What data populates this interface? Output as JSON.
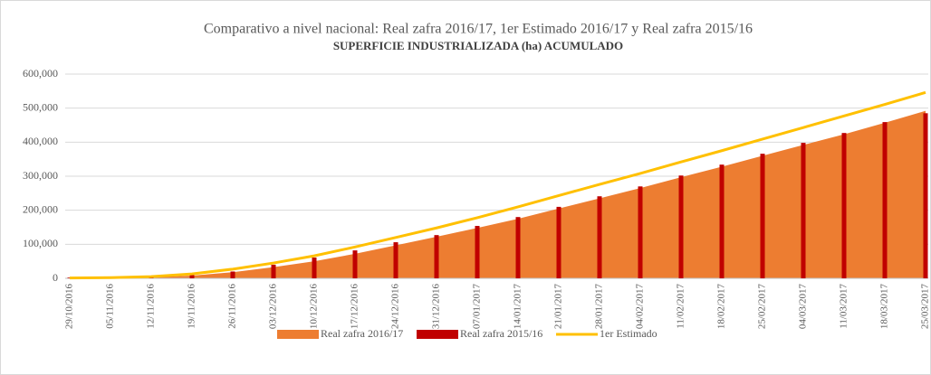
{
  "chart_data": {
    "type": "combo",
    "title": "Comparativo a nivel nacional: Real zafra 2016/17, 1er Estimado 2016/17 y Real zafra 2015/16",
    "subtitle": "SUPERFICIE INDUSTRIALIZADA (ha) ACUMULADO",
    "categories": [
      "29/10/2016",
      "05/11/2016",
      "12/11/2016",
      "19/11/2016",
      "26/11/2016",
      "03/12/2016",
      "10/12/2016",
      "17/12/2016",
      "24/12/2016",
      "31/12/2016",
      "07/01/2017",
      "14/01/2017",
      "21/01/2017",
      "28/01/2017",
      "04/02/2017",
      "11/02/2017",
      "18/02/2017",
      "25/02/2017",
      "04/03/2017",
      "11/03/2017",
      "18/03/2017",
      "25/03/2017"
    ],
    "series": [
      {
        "name": "Real zafra 2016/17",
        "type": "area",
        "color": "#ed7d31",
        "values": [
          0,
          1000,
          3000,
          8000,
          18000,
          33000,
          50000,
          72000,
          97000,
          122000,
          148000,
          175000,
          205000,
          235000,
          265000,
          297000,
          328000,
          360000,
          392000,
          423000,
          457000,
          492000
        ]
      },
      {
        "name": "Real zafra 2015/16",
        "type": "bar",
        "color": "#c00000",
        "values": [
          2000,
          3000,
          7000,
          10000,
          20000,
          40000,
          61000,
          82000,
          106000,
          127000,
          154000,
          180000,
          210000,
          241000,
          270000,
          302000,
          334000,
          366000,
          398000,
          427000,
          459000,
          485000
        ]
      },
      {
        "name": "1er Estimado",
        "type": "line",
        "color": "#ffc000",
        "values": [
          1000,
          2000,
          5000,
          13000,
          27000,
          45000,
          66000,
          92000,
          120000,
          148000,
          178000,
          210000,
          243000,
          276000,
          308000,
          342000,
          375000,
          409000,
          443000,
          477000,
          511000,
          546000
        ]
      }
    ],
    "ylim": [
      0,
      600000
    ],
    "yticks": [
      0,
      {
        "value": 100000,
        "label": "100,000"
      },
      {
        "value": 200000,
        "label": "200,000"
      },
      {
        "value": 300000,
        "label": "300,000"
      },
      {
        "value": 400000,
        "label": "400,000"
      },
      {
        "value": 500000,
        "label": "500,000"
      },
      {
        "value": 600000,
        "label": "600,000"
      }
    ],
    "grid": true,
    "legend": "bottom"
  }
}
